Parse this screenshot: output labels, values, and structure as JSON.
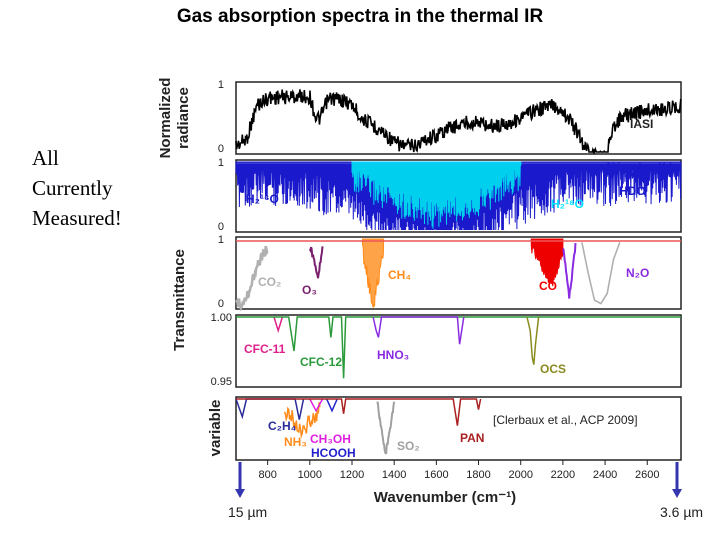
{
  "title": "Gas absorption spectra in the thermal IR",
  "side_note": [
    "All",
    "Currently",
    "Measured!"
  ],
  "citation": "[Clerbaux et al., ACP 2009]",
  "left_bound": "15 µm",
  "right_bound": "3.6 µm",
  "chart_data": [
    {
      "type": "line",
      "ylabel": [
        "Normalized",
        "radiance"
      ],
      "yticks": [
        "0",
        "1"
      ],
      "ylim": [
        0,
        1
      ],
      "series": [
        {
          "name": "IASI",
          "color": "#000000",
          "x": [
            650,
            700,
            750,
            800,
            850,
            900,
            950,
            1000,
            1030,
            1050,
            1080,
            1100,
            1150,
            1200,
            1250,
            1300,
            1350,
            1400,
            1450,
            1500,
            1550,
            1600,
            1650,
            1700,
            1750,
            1800,
            1850,
            1900,
            1950,
            2000,
            2050,
            2100,
            2150,
            2200,
            2250,
            2300,
            2350,
            2400,
            2450,
            2500,
            2600,
            2700,
            2760
          ],
          "y": [
            0.2,
            0.3,
            0.8,
            0.9,
            0.92,
            0.92,
            0.93,
            0.92,
            0.6,
            0.6,
            0.85,
            0.9,
            0.88,
            0.8,
            0.6,
            0.5,
            0.4,
            0.25,
            0.2,
            0.2,
            0.3,
            0.35,
            0.45,
            0.5,
            0.55,
            0.55,
            0.5,
            0.5,
            0.55,
            0.6,
            0.7,
            0.75,
            0.8,
            0.72,
            0.5,
            0.2,
            0.05,
            0.02,
            0.55,
            0.65,
            0.72,
            0.75,
            0.8
          ]
        }
      ]
    },
    {
      "type": "line",
      "ylabel": "",
      "yticks": [
        "0",
        "1"
      ],
      "ylim": [
        0,
        1
      ],
      "series": [
        {
          "name": "H2 16O",
          "color": "#1a1acc",
          "x": [
            650,
            800,
            1000,
            1200,
            1400,
            1600,
            1800,
            2000,
            2200,
            2400,
            2600,
            2760
          ],
          "y": [
            0.85,
            0.9,
            0.85,
            0.6,
            0.2,
            0.05,
            0.2,
            0.6,
            0.85,
            0.9,
            0.9,
            0.95
          ]
        },
        {
          "name": "H2 18O",
          "color": "#00e5ff",
          "x": [
            1200,
            1400,
            1600,
            1800,
            2000
          ],
          "y": [
            0.95,
            0.6,
            0.4,
            0.6,
            0.95
          ]
        },
        {
          "name": "HDO",
          "color": "#1a1acc",
          "x": [
            2400,
            2600,
            2760
          ],
          "y": [
            0.95,
            0.9,
            0.9
          ]
        }
      ]
    },
    {
      "type": "line",
      "ylabel": "Transmittance",
      "yticks": [
        "0",
        "1"
      ],
      "ylim": [
        0,
        1
      ],
      "series": [
        {
          "name": "CO2",
          "color": "#b0b0b0",
          "x": [
            650,
            700,
            750,
            800
          ],
          "y": [
            0.1,
            0.2,
            0.7,
            0.95
          ]
        },
        {
          "name": "O3",
          "color": "#7a1f6e",
          "x": [
            1000,
            1040,
            1060
          ],
          "y": [
            0.95,
            0.5,
            0.95
          ]
        },
        {
          "name": "CH4",
          "color": "#ff8c1a",
          "x": [
            1250,
            1300,
            1350
          ],
          "y": [
            0.95,
            0.15,
            0.9
          ]
        },
        {
          "name": "CO",
          "color": "#ee0000",
          "x": [
            2050,
            2150,
            2200
          ],
          "y": [
            0.95,
            0.4,
            0.9
          ]
        },
        {
          "name": "N2O",
          "color": "#8a2be2",
          "x": [
            2200,
            2230,
            2260
          ],
          "y": [
            0.95,
            0.2,
            0.95
          ]
        }
      ]
    },
    {
      "type": "line",
      "ylabel": "",
      "yticks": [
        "0.95",
        "1.00"
      ],
      "ylim": [
        0.95,
        1.0
      ],
      "series": [
        {
          "name": "CFC-11",
          "color": "#e0208a",
          "x": [
            830,
            850,
            870
          ],
          "y": [
            1.0,
            0.99,
            1.0
          ]
        },
        {
          "name": "CFC-12",
          "color": "#2a9a3a",
          "x": [
            900,
            925,
            1100,
            1160
          ],
          "y": [
            1.0,
            0.975,
            0.985,
            0.955
          ]
        },
        {
          "name": "HNO3",
          "color": "#8a2be2",
          "x": [
            1300,
            1325,
            1700,
            1720
          ],
          "y": [
            1.0,
            0.985,
            0.98,
            1.0
          ]
        },
        {
          "name": "OCS",
          "color": "#8a8a20",
          "x": [
            2040,
            2060,
            2080
          ],
          "y": [
            1.0,
            0.965,
            1.0
          ]
        }
      ]
    },
    {
      "type": "line",
      "ylabel": "variable",
      "yticks": [],
      "series": [
        {
          "name": "C2H4",
          "color": "#2a2a9a",
          "x": [
            930,
            950,
            970
          ],
          "y": [
            1.0,
            0.7,
            1.0
          ]
        },
        {
          "name": "NH3",
          "color": "#ff8c1a",
          "x": [
            880,
            960,
            1050
          ],
          "y": [
            1.0,
            0.6,
            1.0
          ]
        },
        {
          "name": "CH3OH",
          "color": "#e020e0",
          "x": [
            1000,
            1030,
            1060
          ],
          "y": [
            1.0,
            0.8,
            1.0
          ]
        },
        {
          "name": "HCOOH",
          "color": "#2222cc",
          "x": [
            1080,
            1105,
            1130
          ],
          "y": [
            1.0,
            0.8,
            1.0
          ]
        },
        {
          "name": "SO2",
          "color": "#a0a0a0",
          "x": [
            1320,
            1360,
            1400
          ],
          "y": [
            1.0,
            0.1,
            1.0
          ]
        },
        {
          "name": "PAN",
          "color": "#aa2020",
          "x": [
            1150,
            1165,
            1700,
            1740,
            1800
          ],
          "y": [
            1.0,
            0.75,
            0.55,
            1.0,
            0.8
          ]
        }
      ]
    }
  ],
  "x_axis": {
    "label": "Wavenumber (cm⁻¹)",
    "ticks": [
      800,
      1000,
      1200,
      1400,
      1600,
      1800,
      2000,
      2200,
      2400,
      2600
    ],
    "xlim": [
      650,
      2760
    ]
  },
  "panel_labels": {
    "iasi": "IASI",
    "hdo": "HDO",
    "h2o16": "H₂¹⁶O",
    "h2o18": "H₂¹⁸O",
    "co2": "CO₂",
    "o3": "O₃",
    "ch4": "CH₄",
    "co": "CO",
    "n2o": "N₂O",
    "cfc11": "CFC-11",
    "cfc12": "CFC-12",
    "hno3": "HNO₃",
    "ocs": "OCS",
    "c2h4": "C₂H₄",
    "nh3": "NH₃",
    "ch3oh": "CH₃OH",
    "hcooh": "HCOOH",
    "so2": "SO₂",
    "pan": "PAN"
  },
  "colors": {
    "frame": "#222222",
    "arrow": "#3535b0"
  }
}
